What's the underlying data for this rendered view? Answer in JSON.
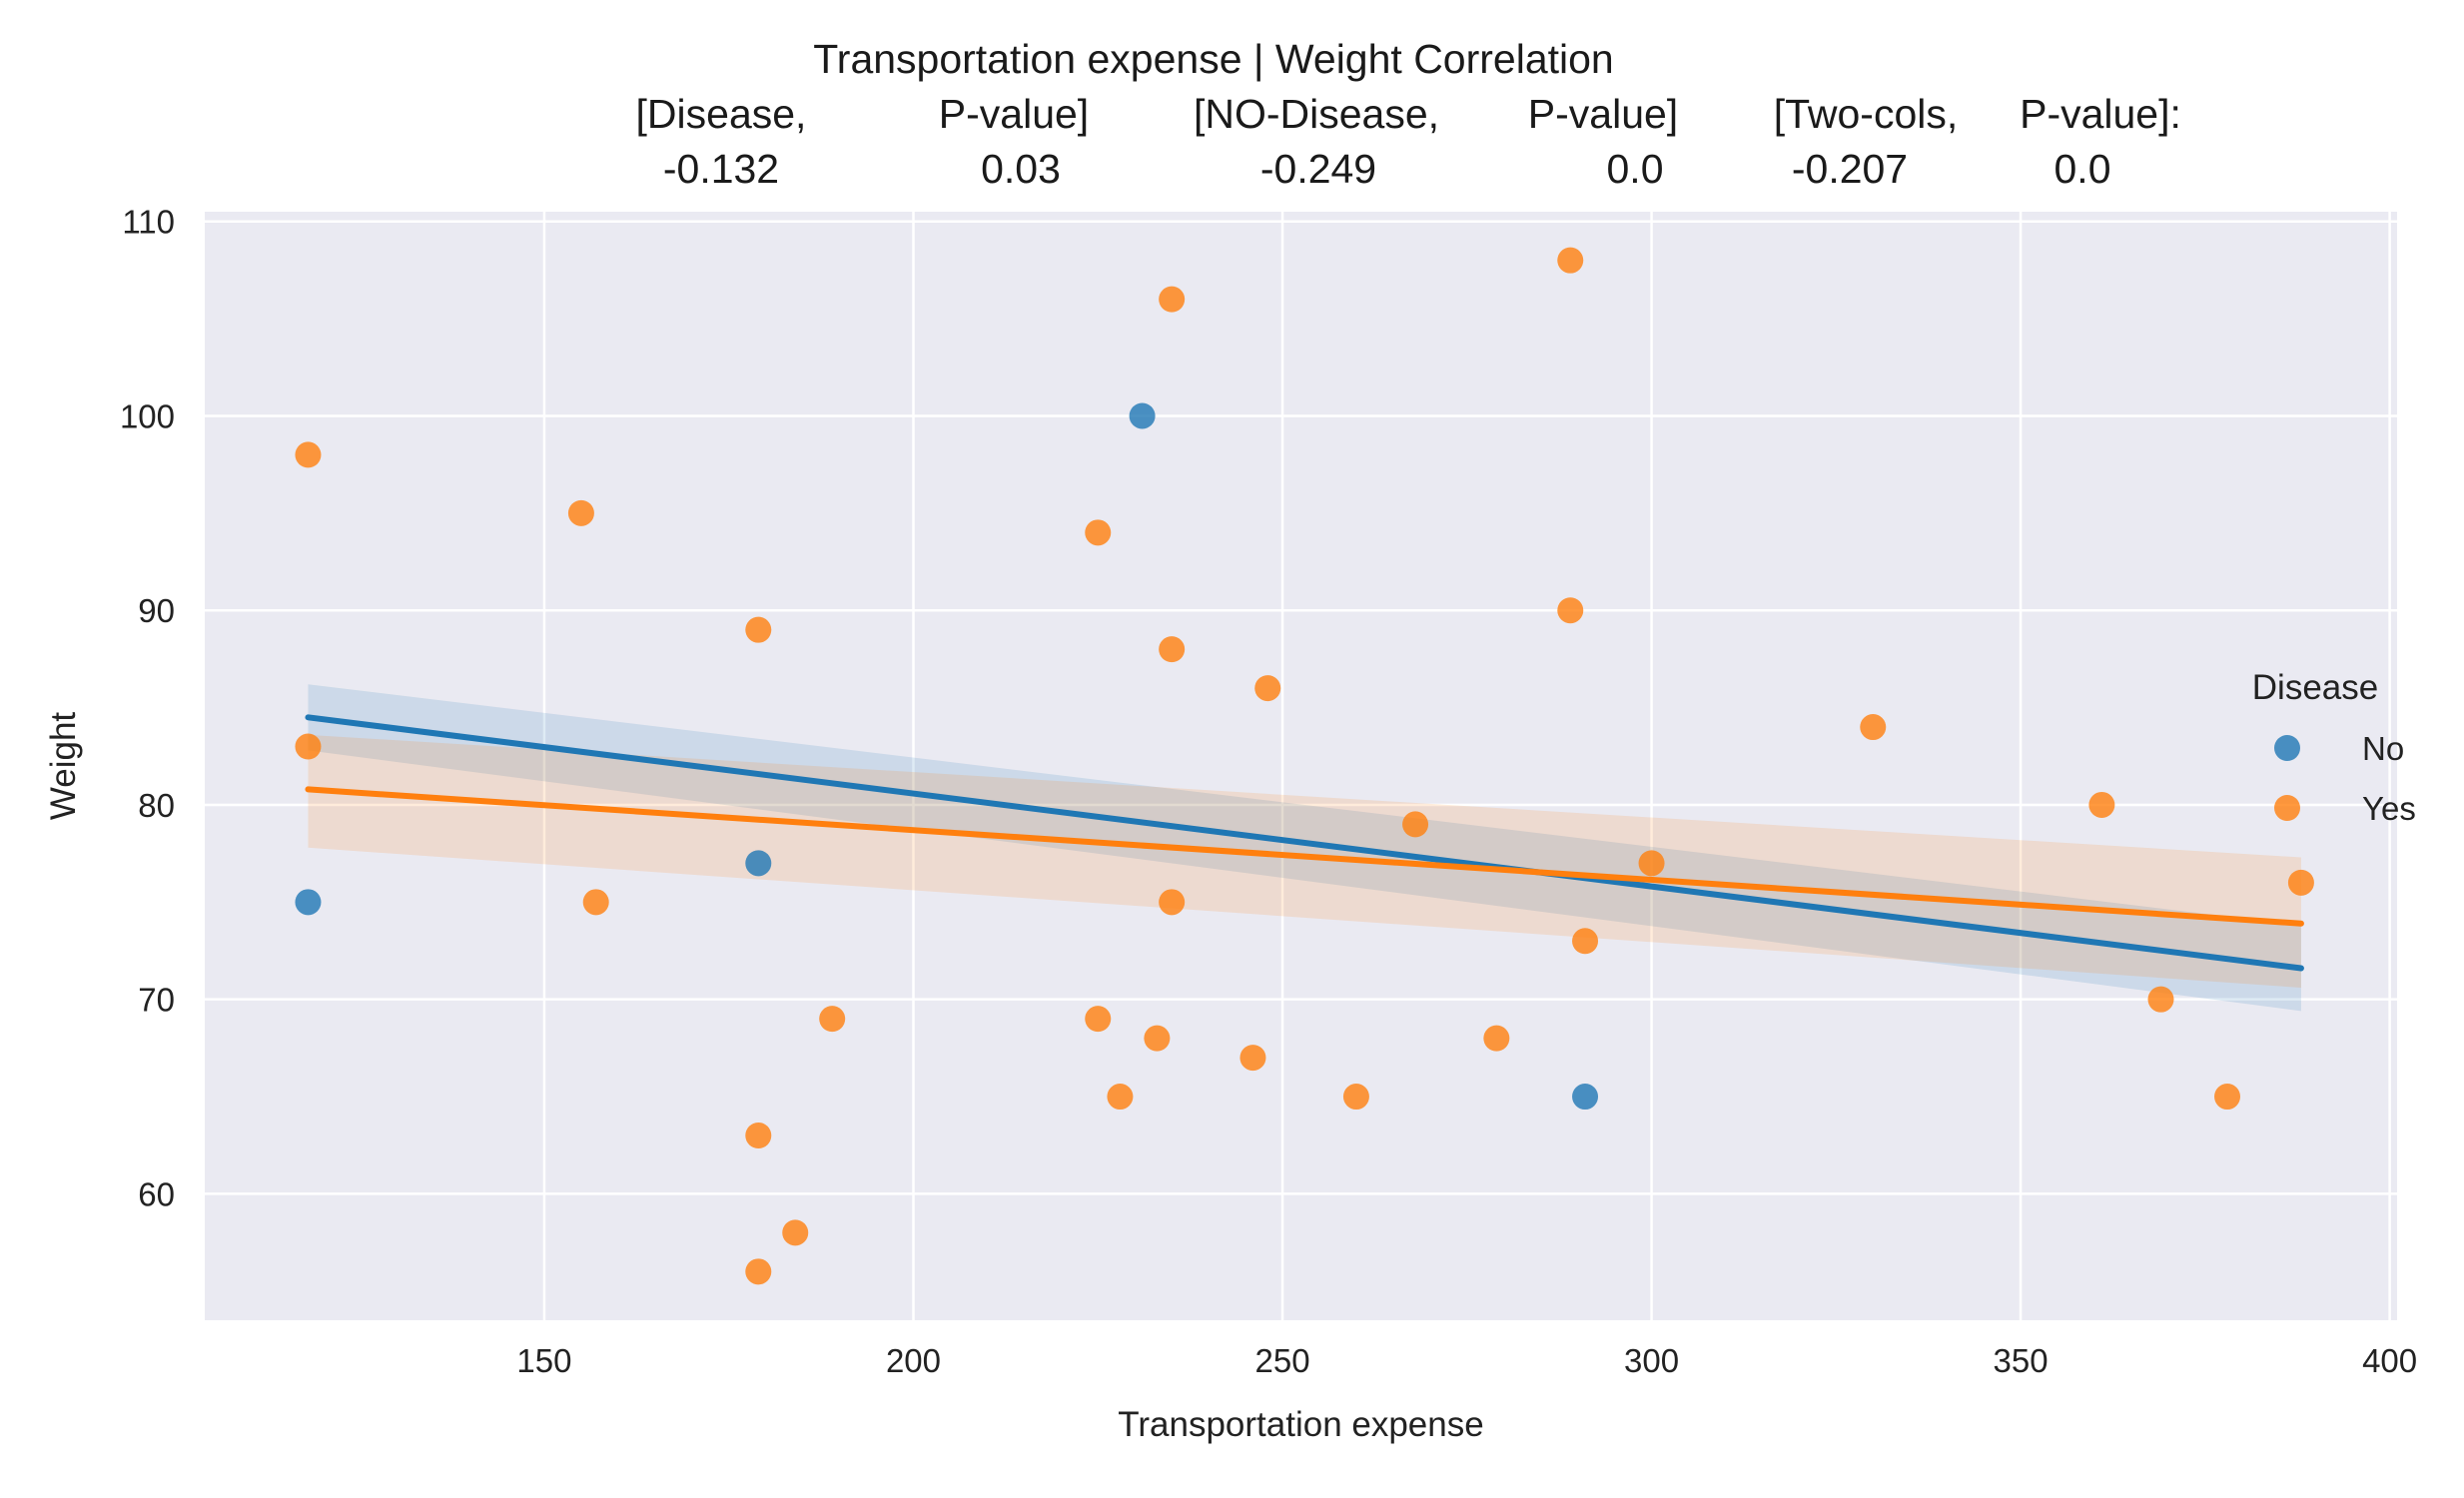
{
  "chart_data": {
    "type": "scatter",
    "title_lines": [
      "Transportation expense | Weight    Correlation",
      "[Disease,         P-value]    [NO-Disease,      P-value]   [Two-cols,  P-value]:",
      "-0.132             0.03             -0.249               0.0        -0.207           0.0"
    ],
    "title_cells": [
      {
        "row": 0,
        "text": "Transportation expense | Weight    Correlation"
      },
      {
        "row": 1,
        "text": "[Disease,"
      },
      {
        "row": 1,
        "text": "P-value]"
      },
      {
        "row": 1,
        "text": "[NO-Disease,"
      },
      {
        "row": 1,
        "text": "P-value]"
      },
      {
        "row": 1,
        "text": "[Two-cols,"
      },
      {
        "row": 1,
        "text": "P-value]:"
      },
      {
        "row": 2,
        "text": "-0.132"
      },
      {
        "row": 2,
        "text": "0.03"
      },
      {
        "row": 2,
        "text": "-0.249"
      },
      {
        "row": 2,
        "text": "0.0"
      },
      {
        "row": 2,
        "text": "-0.207"
      },
      {
        "row": 2,
        "text": "0.0"
      }
    ],
    "xlabel": "Transportation expense",
    "ylabel": "Weight",
    "xlim": [
      104,
      401
    ],
    "ylim": [
      53.5,
      110.5
    ],
    "xticks": [
      150,
      200,
      250,
      300,
      350,
      400
    ],
    "yticks": [
      60,
      70,
      80,
      90,
      100,
      110
    ],
    "grid": true,
    "background": "#eaeaf2",
    "legend": {
      "title": "Disease",
      "placement": "right",
      "entries": [
        "No",
        "Yes"
      ]
    },
    "series": [
      {
        "name": "No",
        "color": "#1f77b4",
        "points": [
          {
            "x": 231,
            "y": 100
          },
          {
            "x": 179,
            "y": 77
          },
          {
            "x": 118,
            "y": 75
          },
          {
            "x": 291,
            "y": 65
          }
        ],
        "regression": {
          "x": [
            118,
            388
          ],
          "y": [
            84.5,
            71.6
          ]
        },
        "ci_band": {
          "x": [
            118,
            388
          ],
          "lower": [
            82.8,
            69.4
          ],
          "upper": [
            86.2,
            73.8
          ]
        }
      },
      {
        "name": "Yes",
        "color": "#ff7f0e",
        "points": [
          {
            "x": 118,
            "y": 98
          },
          {
            "x": 118,
            "y": 83
          },
          {
            "x": 155,
            "y": 95
          },
          {
            "x": 157,
            "y": 75
          },
          {
            "x": 179,
            "y": 89
          },
          {
            "x": 179,
            "y": 63
          },
          {
            "x": 179,
            "y": 56
          },
          {
            "x": 184,
            "y": 58
          },
          {
            "x": 189,
            "y": 69
          },
          {
            "x": 225,
            "y": 94
          },
          {
            "x": 225,
            "y": 69
          },
          {
            "x": 228,
            "y": 65
          },
          {
            "x": 233,
            "y": 68
          },
          {
            "x": 235,
            "y": 106
          },
          {
            "x": 235,
            "y": 88
          },
          {
            "x": 235,
            "y": 75
          },
          {
            "x": 246,
            "y": 67
          },
          {
            "x": 248,
            "y": 86
          },
          {
            "x": 260,
            "y": 65
          },
          {
            "x": 268,
            "y": 79
          },
          {
            "x": 279,
            "y": 68
          },
          {
            "x": 289,
            "y": 108
          },
          {
            "x": 289,
            "y": 90
          },
          {
            "x": 291,
            "y": 73
          },
          {
            "x": 300,
            "y": 77
          },
          {
            "x": 330,
            "y": 84
          },
          {
            "x": 361,
            "y": 80
          },
          {
            "x": 369,
            "y": 70
          },
          {
            "x": 378,
            "y": 65
          },
          {
            "x": 388,
            "y": 76
          }
        ],
        "regression": {
          "x": [
            118,
            388
          ],
          "y": [
            80.8,
            73.9
          ]
        },
        "ci_band": {
          "x": [
            118,
            388
          ],
          "lower": [
            77.8,
            70.6
          ],
          "upper": [
            83.6,
            77.3
          ]
        }
      }
    ]
  }
}
